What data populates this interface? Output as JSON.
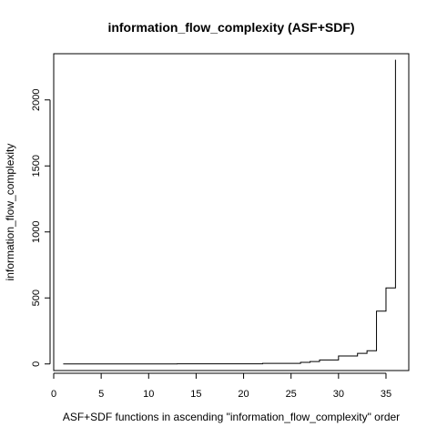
{
  "chart_data": {
    "type": "line",
    "title": "information_flow_complexity (ASF+SDF)",
    "xlabel": "ASF+SDF functions in ascending \"information_flow_complexity\" order",
    "ylabel": "information_flow_complexity",
    "xlim": [
      0,
      37.4
    ],
    "ylim": [
      -50,
      2350
    ],
    "x_ticks": [
      0,
      5,
      10,
      15,
      20,
      25,
      30,
      35
    ],
    "y_ticks": [
      0,
      500,
      1000,
      1500,
      2000
    ],
    "grid": false,
    "legend": "none",
    "series": [
      {
        "x": [
          1,
          2,
          3,
          4,
          5,
          6,
          7,
          8,
          9,
          10,
          11,
          12,
          13,
          14,
          15,
          16,
          17,
          18,
          19,
          20,
          21,
          22,
          23,
          24,
          25,
          26,
          27,
          28,
          29,
          30,
          31,
          32,
          33,
          34,
          35,
          36
        ],
        "values": [
          0,
          0,
          0,
          0,
          0,
          0,
          0,
          0,
          0,
          0,
          0,
          0,
          1,
          1,
          1,
          1,
          1,
          1,
          1,
          1,
          1,
          4,
          4,
          4,
          4,
          12,
          18,
          30,
          30,
          60,
          60,
          80,
          100,
          400,
          576,
          2304
        ]
      }
    ]
  }
}
